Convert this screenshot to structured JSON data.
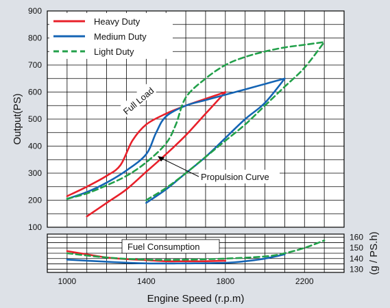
{
  "chart_data": [
    {
      "type": "line",
      "panel": "main",
      "ylabel": "Output(PS)",
      "xlim": [
        900,
        2400
      ],
      "ylim": [
        100,
        900
      ],
      "xticks": [],
      "yticks": [
        "900",
        "800",
        "700",
        "600",
        "500",
        "400",
        "300",
        "200",
        "100"
      ],
      "grid": true,
      "legend_position": "top-left",
      "series": [
        {
          "name": "Heavy Duty",
          "color": "#e8202a",
          "style": "solid",
          "segments": [
            {
              "label": "full_load",
              "x": [
                1000,
                1100,
                1200,
                1270,
                1330,
                1400,
                1500,
                1600,
                1700,
                1800
              ],
              "y": [
                215,
                250,
                290,
                330,
                420,
                480,
                520,
                550,
                575,
                600
              ]
            },
            {
              "label": "propulsion",
              "x": [
                1100,
                1200,
                1300,
                1400,
                1500,
                1600,
                1700,
                1800
              ],
              "y": [
                140,
                190,
                240,
                305,
                370,
                440,
                520,
                600
              ]
            }
          ]
        },
        {
          "name": "Medium Duty",
          "color": "#1464b4",
          "style": "solid",
          "segments": [
            {
              "label": "full_load",
              "x": [
                1000,
                1100,
                1200,
                1300,
                1400,
                1450,
                1500,
                1600,
                1700,
                1800,
                1900,
                2000,
                2100
              ],
              "y": [
                205,
                230,
                265,
                310,
                370,
                450,
                510,
                550,
                570,
                590,
                610,
                630,
                650
              ]
            },
            {
              "label": "propulsion",
              "x": [
                1400,
                1500,
                1600,
                1700,
                1800,
                1900,
                2000,
                2100
              ],
              "y": [
                190,
                240,
                300,
                360,
                430,
                500,
                560,
                650
              ]
            }
          ]
        },
        {
          "name": "Light Duty",
          "color": "#22a04a",
          "style": "dashed",
          "segments": [
            {
              "label": "full_load",
              "x": [
                1000,
                1100,
                1200,
                1300,
                1400,
                1500,
                1550,
                1600,
                1700,
                1800,
                1900,
                2000,
                2100,
                2200,
                2300
              ],
              "y": [
                205,
                225,
                255,
                290,
                340,
                410,
                480,
                580,
                650,
                700,
                730,
                750,
                765,
                775,
                785
              ]
            },
            {
              "label": "propulsion",
              "x": [
                1400,
                1500,
                1600,
                1700,
                1800,
                1900,
                2000,
                2100,
                2200,
                2300
              ],
              "y": [
                200,
                245,
                300,
                360,
                420,
                480,
                550,
                620,
                690,
                785
              ]
            }
          ]
        }
      ],
      "annotations": [
        "Full Load",
        "Propulsion Curve"
      ]
    },
    {
      "type": "line",
      "panel": "fuel",
      "title": "Fuel Consumption",
      "xlabel": "Engine Speed (r.p.m)",
      "ylabel": "(g / PS.h)",
      "xlim": [
        900,
        2400
      ],
      "ylim": [
        127,
        163
      ],
      "xticks": [
        "1000",
        "1400",
        "1800",
        "2200"
      ],
      "yticks": [
        "160",
        "150",
        "140",
        "130"
      ],
      "grid": true,
      "series": [
        {
          "name": "Heavy Duty",
          "color": "#e8202a",
          "style": "solid",
          "x": [
            1000,
            1100,
            1200,
            1300,
            1400,
            1500,
            1600,
            1700,
            1800
          ],
          "y": [
            147,
            144,
            141,
            139.5,
            138.5,
            137.5,
            137.5,
            137.5,
            138
          ]
        },
        {
          "name": "Medium Duty",
          "color": "#1464b4",
          "style": "solid",
          "x": [
            1000,
            1200,
            1400,
            1600,
            1800,
            1900,
            2000,
            2100
          ],
          "y": [
            139,
            137,
            135.5,
            135.5,
            136,
            137.5,
            140,
            144
          ]
        },
        {
          "name": "Light Duty",
          "color": "#22a04a",
          "style": "dashed",
          "x": [
            1000,
            1200,
            1400,
            1600,
            1800,
            2000,
            2100,
            2200,
            2300
          ],
          "y": [
            145,
            141,
            139,
            139,
            140,
            142,
            145,
            150,
            157
          ]
        }
      ]
    }
  ]
}
